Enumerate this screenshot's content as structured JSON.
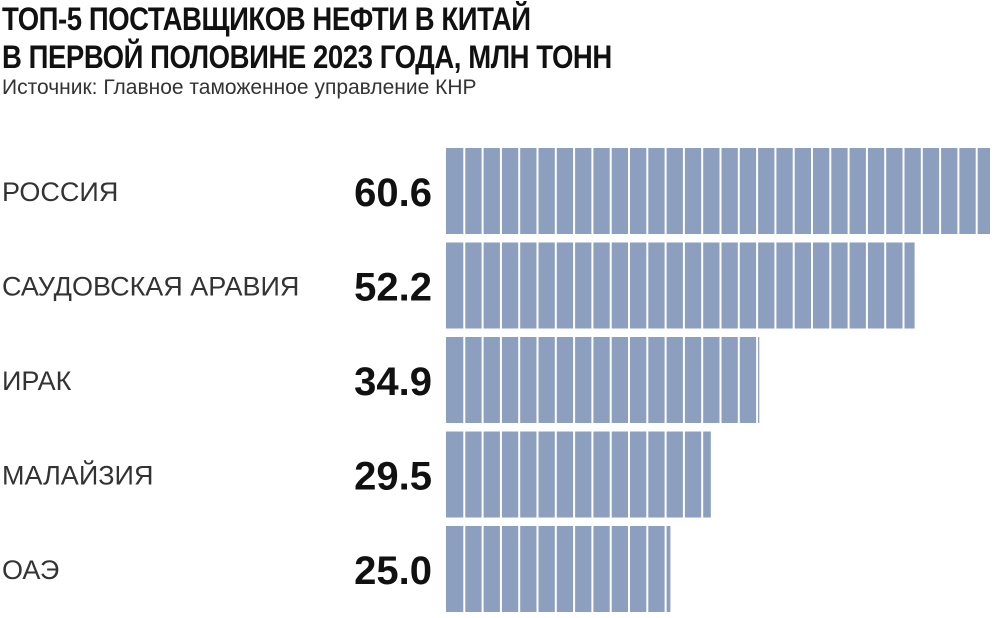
{
  "title_lines": [
    "ТОП-5 ПОСТАВЩИКОВ НЕФТИ В КИТАЙ",
    "В ПЕРВОЙ ПОЛОВИНЕ 2023 ГОДА, МЛН ТОНН"
  ],
  "source": "Источник: Главное таможенное управление КНР",
  "colors": {
    "bar": "#8c9fbe",
    "divider": "#ffffff",
    "label": "#333333",
    "value": "#111111"
  },
  "chart_data": {
    "type": "bar",
    "orientation": "horizontal",
    "title": "ТОП-5 ПОСТАВЩИКОВ НЕФТИ В КИТАЙ В ПЕРВОЙ ПОЛОВИНЕ 2023 ГОДА, МЛН ТОНН",
    "categories": [
      "РОССИЯ",
      "САУДОВСКАЯ АРАВИЯ",
      "ИРАК",
      "МАЛАЙЗИЯ",
      "ОАЭ"
    ],
    "values": [
      60.6,
      52.2,
      34.9,
      29.5,
      25.0
    ],
    "value_labels": [
      "60.6",
      "52.2",
      "34.9",
      "29.5",
      "25.0"
    ],
    "xlim": [
      0,
      60.6
    ],
    "grid": false,
    "legend": "none"
  }
}
